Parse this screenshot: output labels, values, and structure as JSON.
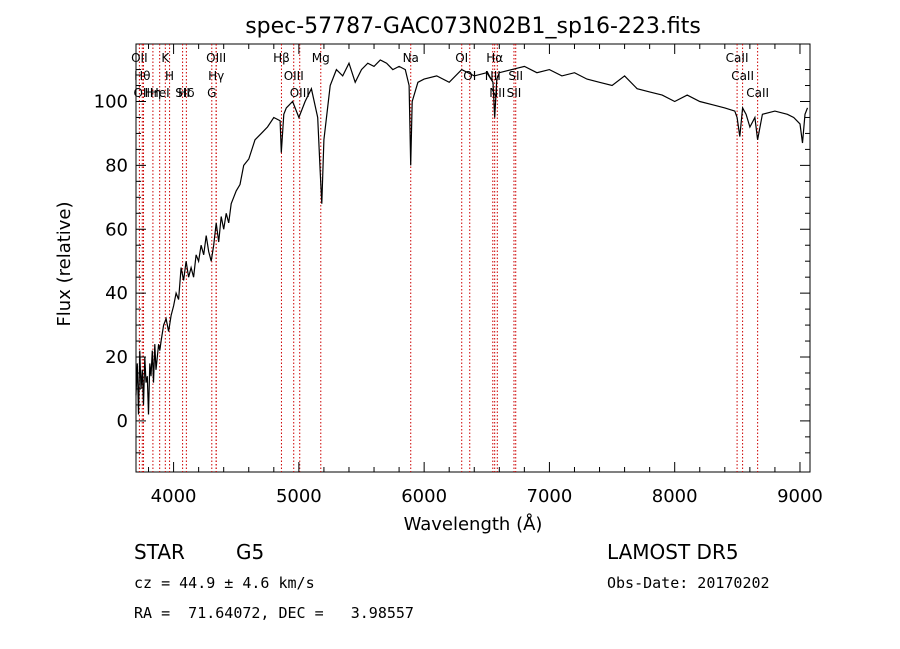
{
  "chart_data": {
    "type": "line",
    "title": "spec-57787-GAC073N02B1_sp16-223.fits",
    "xlabel": "Wavelength (Å)",
    "ylabel": "Flux (relative)",
    "xlim": [
      3700,
      9080
    ],
    "ylim": [
      -16,
      118
    ],
    "xticks": [
      4000,
      5000,
      6000,
      7000,
      8000,
      9000
    ],
    "yticks": [
      0,
      20,
      40,
      60,
      80,
      100
    ],
    "grid": false,
    "line_color": "#000000",
    "marker_color": "#cc0000",
    "series": [
      {
        "x": [
          3700,
          3710,
          3720,
          3730,
          3740,
          3750,
          3760,
          3770,
          3780,
          3790,
          3800,
          3810,
          3820,
          3830,
          3840,
          3850,
          3860,
          3870,
          3880,
          3890,
          3900,
          3920,
          3940,
          3960,
          3980,
          4000,
          4020,
          4040,
          4060,
          4080,
          4100,
          4120,
          4140,
          4160,
          4180,
          4200,
          4220,
          4240,
          4260,
          4280,
          4300,
          4320,
          4340,
          4360,
          4380,
          4400,
          4420,
          4440,
          4460,
          4480,
          4500,
          4530,
          4560,
          4600,
          4650,
          4700,
          4750,
          4800,
          4850,
          4860,
          4880,
          4900,
          4950,
          5000,
          5050,
          5100,
          5150,
          5170,
          5183,
          5200,
          5250,
          5300,
          5350,
          5400,
          5450,
          5500,
          5550,
          5600,
          5650,
          5700,
          5750,
          5800,
          5850,
          5880,
          5893,
          5905,
          5950,
          6000,
          6100,
          6200,
          6300,
          6400,
          6500,
          6550,
          6563,
          6580,
          6600,
          6700,
          6800,
          6900,
          7000,
          7100,
          7200,
          7300,
          7400,
          7500,
          7600,
          7700,
          7800,
          7900,
          8000,
          8100,
          8200,
          8300,
          8400,
          8480,
          8498,
          8520,
          8542,
          8570,
          8600,
          8640,
          8662,
          8700,
          8800,
          8900,
          8950,
          9000,
          9020,
          9040,
          9060
        ],
        "y": [
          8,
          18,
          2,
          22,
          10,
          16,
          5,
          20,
          12,
          14,
          2,
          18,
          14,
          22,
          12,
          24,
          16,
          20,
          24,
          22,
          25,
          30,
          32,
          28,
          33,
          36,
          40,
          38,
          48,
          44,
          50,
          45,
          48,
          45,
          52,
          50,
          55,
          52,
          58,
          53,
          50,
          55,
          62,
          56,
          64,
          60,
          65,
          62,
          68,
          70,
          72,
          74,
          80,
          82,
          88,
          90,
          92,
          95,
          94,
          84,
          96,
          98,
          100,
          95,
          100,
          104,
          95,
          78,
          68,
          88,
          105,
          110,
          108,
          112,
          106,
          110,
          112,
          111,
          113,
          112,
          110,
          111,
          110,
          105,
          80,
          100,
          106,
          107,
          108,
          106,
          110,
          108,
          109,
          106,
          95,
          107,
          109,
          110,
          111,
          109,
          110,
          108,
          109,
          107,
          106,
          105,
          108,
          104,
          103,
          102,
          100,
          102,
          100,
          99,
          98,
          97,
          95,
          89,
          98,
          96,
          92,
          95,
          88,
          96,
          97,
          96,
          95,
          93,
          87,
          96,
          98
        ]
      }
    ],
    "line_markers": [
      {
        "label": "OII",
        "x": 3727
      },
      {
        "label": "Hθ",
        "x": 3750
      },
      {
        "label": "OIII",
        "x": 3760
      },
      {
        "label": "Hη",
        "x": 3835
      },
      {
        "label": "HeI",
        "x": 3889
      },
      {
        "label": "K",
        "x": 3934
      },
      {
        "label": "H",
        "x": 3968
      },
      {
        "label": "SII",
        "x": 4072
      },
      {
        "label": "Hδ",
        "x": 4102
      },
      {
        "label": "OIII",
        "x": 4340
      },
      {
        "label": "Hγ",
        "x": 4340
      },
      {
        "label": "G",
        "x": 4305
      },
      {
        "label": "Hβ",
        "x": 4861
      },
      {
        "label": "OIII",
        "x": 4959
      },
      {
        "label": "OIII",
        "x": 5007
      },
      {
        "label": "Mg",
        "x": 5175
      },
      {
        "label": "Na",
        "x": 5893
      },
      {
        "label": "OI",
        "x": 6300
      },
      {
        "label": "OI",
        "x": 6364
      },
      {
        "label": "Hα",
        "x": 6563
      },
      {
        "label": "NII",
        "x": 6548
      },
      {
        "label": "NII",
        "x": 6584
      },
      {
        "label": "SII",
        "x": 6717
      },
      {
        "label": "SII",
        "x": 6731
      },
      {
        "label": "CaII",
        "x": 8498
      },
      {
        "label": "CaII",
        "x": 8542
      },
      {
        "label": "CaII",
        "x": 8662
      }
    ]
  },
  "footer": {
    "object_class": "STAR",
    "subclass": "G5",
    "survey": "LAMOST DR5",
    "cz": "cz = 44.9 ± 4.6 km/s",
    "obs_date": "Obs-Date: 20170202",
    "coords": "RA =  71.64072, DEC =   3.98557"
  }
}
